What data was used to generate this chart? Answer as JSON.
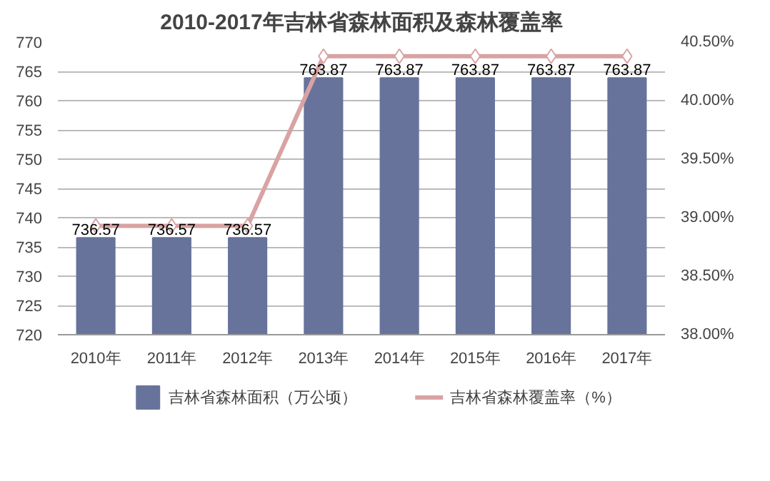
{
  "chart_data": {
    "type": "bar",
    "title": "2010-2017年吉林省森林面积及森林覆盖率",
    "categories": [
      "2010年",
      "2011年",
      "2012年",
      "2013年",
      "2014年",
      "2015年",
      "2016年",
      "2017年"
    ],
    "series": [
      {
        "name": "吉林省森林面积（万公顷）",
        "color": "#67739b",
        "values": [
          736.57,
          736.57,
          736.57,
          763.87,
          763.87,
          763.87,
          763.87,
          763.87
        ],
        "value_labels": [
          "736.57",
          "736.57",
          "736.57",
          "763.87",
          "763.87",
          "763.87",
          "763.87",
          "763.87"
        ]
      },
      {
        "name": "吉林省森林覆盖率（%）",
        "type": "line",
        "axis": "y2",
        "color": "#d9a3a3",
        "marker": "diamond",
        "values": [
          38.93,
          38.93,
          38.93,
          40.38,
          40.38,
          40.38,
          40.38,
          40.38
        ]
      }
    ],
    "ylim": [
      720,
      770
    ],
    "yticks": [
      720,
      725,
      730,
      735,
      740,
      745,
      750,
      755,
      760,
      765,
      770
    ],
    "y2lim": [
      38,
      40.5
    ],
    "y2ticks": [
      {
        "value": 38,
        "label": "38.00%"
      },
      {
        "value": 38.5,
        "label": "38.50%"
      },
      {
        "value": 39,
        "label": "39.00%"
      },
      {
        "value": 39.5,
        "label": "39.50%"
      },
      {
        "value": 40,
        "label": "40.00%"
      },
      {
        "value": 40.5,
        "label": "40.50%"
      }
    ],
    "grid": "y",
    "legend": "bottom"
  }
}
